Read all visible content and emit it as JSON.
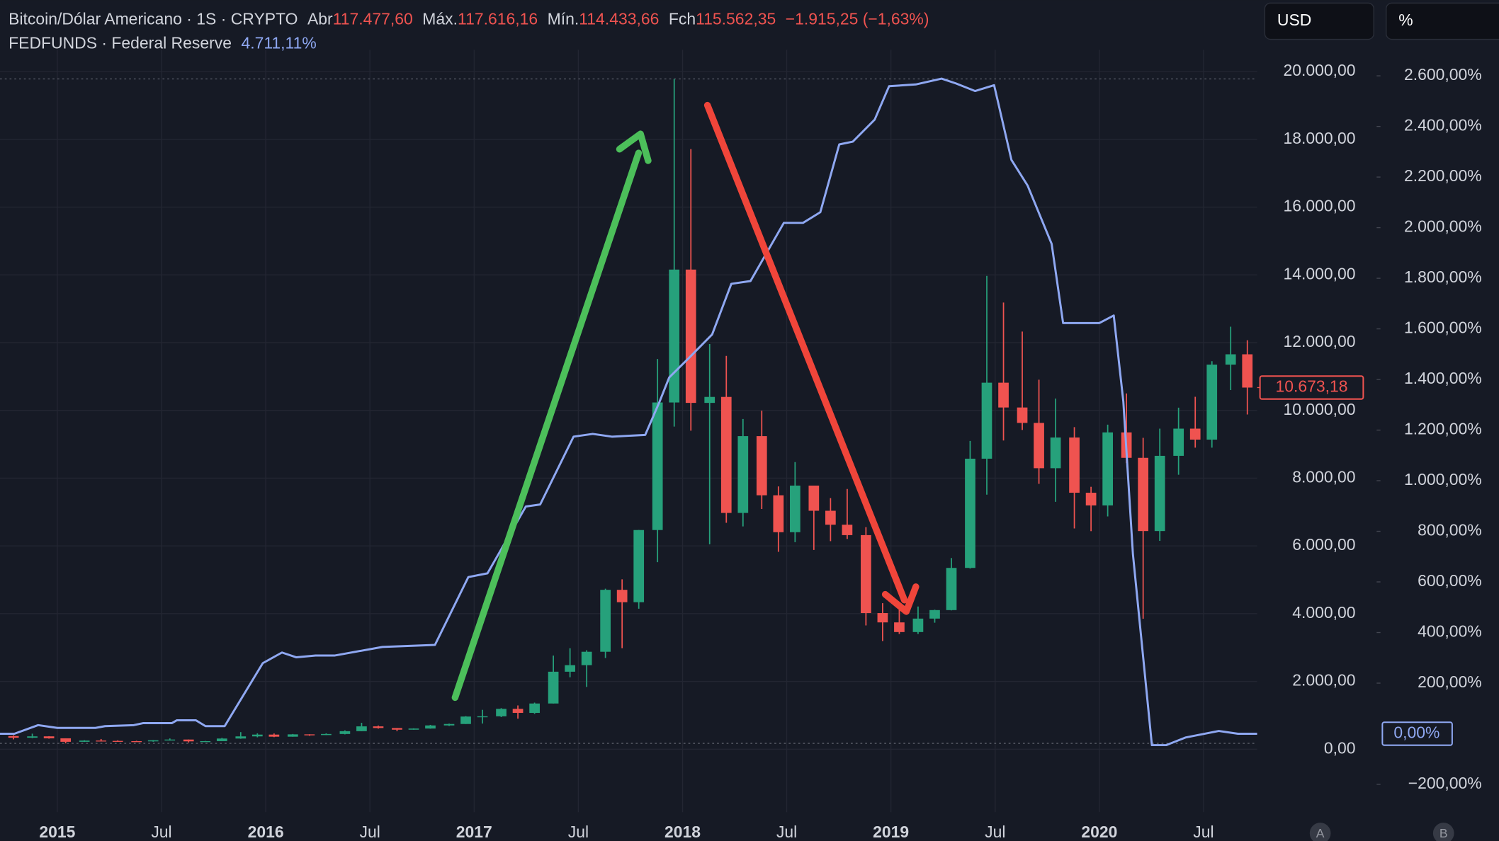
{
  "chart_data": {
    "type": "candlestick",
    "axis_units": [
      "USD",
      "%"
    ],
    "corner_buttons": [
      "A",
      "B"
    ],
    "xlim": [
      2014.725,
      2020.757
    ],
    "xticks": [
      {
        "value": 2015,
        "label": "2015"
      },
      {
        "value": 2015.5,
        "label": "Jul"
      },
      {
        "value": 2016,
        "label": "2016"
      },
      {
        "value": 2016.5,
        "label": "Jul"
      },
      {
        "value": 2017,
        "label": "2017"
      },
      {
        "value": 2017.5,
        "label": "Jul"
      },
      {
        "value": 2018,
        "label": "2018"
      },
      {
        "value": 2018.5,
        "label": "Jul"
      },
      {
        "value": 2019,
        "label": "2019"
      },
      {
        "value": 2019.5,
        "label": "Jul"
      },
      {
        "value": 2020,
        "label": "2020"
      },
      {
        "value": 2020.5,
        "label": "Jul"
      }
    ],
    "ylim": [
      -1860,
      20360
    ],
    "yticks": [
      {
        "value": 0,
        "label": "0,00"
      },
      {
        "value": 2000,
        "label": "2.000,00"
      },
      {
        "value": 4000,
        "label": "4.000,00"
      },
      {
        "value": 6000,
        "label": "6.000,00"
      },
      {
        "value": 8000,
        "label": "8.000,00"
      },
      {
        "value": 10000,
        "label": "10.000,00"
      },
      {
        "value": 12000,
        "label": "12.000,00"
      },
      {
        "value": 14000,
        "label": "14.000,00"
      },
      {
        "value": 16000,
        "label": "16.000,00"
      },
      {
        "value": 18000,
        "label": "18.000,00"
      },
      {
        "value": 20000,
        "label": "20.000,00"
      }
    ],
    "y2lim": [
      -310,
      2665
    ],
    "y2ticks": [
      {
        "value": -200,
        "label": "−200,00%"
      },
      {
        "value": 200,
        "label": "200,00%"
      },
      {
        "value": 400,
        "label": "400,00%"
      },
      {
        "value": 600,
        "label": "600,00%"
      },
      {
        "value": 800,
        "label": "800,00%"
      },
      {
        "value": 1000,
        "label": "1.000,00%"
      },
      {
        "value": 1200,
        "label": "1.200,00%"
      },
      {
        "value": 1400,
        "label": "1.400,00%"
      },
      {
        "value": 1600,
        "label": "1.600,00%"
      },
      {
        "value": 1800,
        "label": "1.800,00%"
      },
      {
        "value": 2000,
        "label": "2.000,00%"
      },
      {
        "value": 2200,
        "label": "2.200,00%"
      },
      {
        "value": 2400,
        "label": "2.400,00%"
      },
      {
        "value": 2600,
        "label": "2.600,00%"
      }
    ],
    "grid": true,
    "series": [
      {
        "name": "Bitcoin/Dólar Americano · 1S · CRYPTO",
        "type": "candlestick",
        "up_color": "#26a17b",
        "down_color": "#ef5350",
        "stats": [
          {
            "label": "Abr",
            "value": "117.477,60"
          },
          {
            "label": "Máx.",
            "value": "117.616,16"
          },
          {
            "label": "Mín.",
            "value": "114.433,66"
          },
          {
            "label": "Fch",
            "value": "115.562,35"
          }
        ],
        "change": "−1.915,25 (−1,63%)",
        "last_label": "10.673,18",
        "x": [
          2014.79,
          2014.88,
          2014.96,
          2015.04,
          2015.13,
          2015.21,
          2015.29,
          2015.38,
          2015.46,
          2015.54,
          2015.63,
          2015.71,
          2015.79,
          2015.88,
          2015.96,
          2016.04,
          2016.13,
          2016.21,
          2016.29,
          2016.38,
          2016.46,
          2016.54,
          2016.63,
          2016.71,
          2016.79,
          2016.88,
          2016.96,
          2017.04,
          2017.13,
          2017.21,
          2017.29,
          2017.38,
          2017.46,
          2017.54,
          2017.63,
          2017.71,
          2017.79,
          2017.88,
          2017.96,
          2018.04,
          2018.13,
          2018.21,
          2018.29,
          2018.38,
          2018.46,
          2018.54,
          2018.63,
          2018.71,
          2018.79,
          2018.88,
          2018.96,
          2019.04,
          2019.13,
          2019.21,
          2019.29,
          2019.38,
          2019.46,
          2019.54,
          2019.63,
          2019.71,
          2019.79,
          2019.88,
          2019.96,
          2020.04,
          2020.13,
          2020.21,
          2020.29,
          2020.38,
          2020.46,
          2020.54,
          2020.63,
          2020.71
        ],
        "open": [
          387,
          338,
          378,
          320,
          217,
          254,
          244,
          236,
          230,
          263,
          284,
          230,
          236,
          314,
          377,
          430,
          368,
          437,
          416,
          448,
          531,
          673,
          624,
          575,
          609,
          701,
          743,
          963,
          970,
          1190,
          1071,
          1348,
          2286,
          2480,
          2875,
          4703,
          4338,
          6468,
          10233,
          14156,
          10221,
          10397,
          6973,
          9240,
          7494,
          6404,
          7780,
          7037,
          6625,
          6318,
          4017,
          3742,
          3457,
          3854,
          4105,
          5350,
          8574,
          10817,
          10085,
          9630,
          8293,
          9199,
          7569,
          7194,
          9350,
          8599,
          6438,
          8658,
          9461,
          9137,
          11351,
          11655
        ],
        "high": [
          411,
          457,
          384,
          320,
          265,
          300,
          261,
          248,
          268,
          317,
          285,
          243,
          334,
          503,
          466,
          463,
          448,
          440,
          467,
          555,
          778,
          698,
          626,
          615,
          717,
          755,
          975,
          1161,
          1211,
          1291,
          1374,
          2763,
          2980,
          2920,
          4736,
          5014,
          6470,
          11517,
          19783,
          17712,
          11958,
          11608,
          9745,
          9990,
          7754,
          8474,
          7760,
          7410,
          7680,
          6555,
          4309,
          4109,
          4211,
          4117,
          5642,
          9097,
          13970,
          13183,
          12326,
          10905,
          10350,
          9505,
          7744,
          9578,
          10500,
          9189,
          9460,
          10080,
          10400,
          11450,
          12470,
          12070
        ],
        "low": [
          289,
          325,
          310,
          171,
          212,
          235,
          214,
          226,
          219,
          253,
          198,
          224,
          235,
          306,
          350,
          355,
          366,
          394,
          416,
          437,
          531,
          606,
          532,
          574,
          604,
          684,
          743,
          756,
          947,
          900,
          1043,
          1348,
          2123,
          1837,
          2691,
          2981,
          4146,
          5519,
          9522,
          9402,
          6048,
          6683,
          6574,
          7090,
          5826,
          6111,
          5880,
          6140,
          6205,
          3652,
          3191,
          3400,
          3400,
          3733,
          4096,
          5332,
          7512,
          9111,
          9421,
          7830,
          7300,
          6515,
          6435,
          6871,
          8445,
          3850,
          6150,
          8100,
          8900,
          8900,
          10600,
          9880
        ],
        "close": [
          338,
          378,
          320,
          217,
          254,
          244,
          236,
          230,
          263,
          284,
          230,
          236,
          314,
          377,
          430,
          368,
          437,
          416,
          448,
          531,
          673,
          624,
          575,
          609,
          701,
          743,
          963,
          970,
          1190,
          1071,
          1348,
          2286,
          2480,
          2875,
          4703,
          4338,
          6468,
          10233,
          14156,
          10221,
          10397,
          6973,
          9240,
          7494,
          6404,
          7780,
          7037,
          6625,
          6318,
          4017,
          3742,
          3457,
          3854,
          4105,
          5350,
          8574,
          10817,
          10085,
          9630,
          8293,
          9199,
          7569,
          7194,
          9350,
          8599,
          6438,
          8658,
          9461,
          9137,
          11351,
          11655,
          10673.18
        ]
      },
      {
        "name": "FEDFUNDS · Federal Reserve",
        "type": "line",
        "axis": "y2",
        "color": "#8fa8f2",
        "stats_value": "4.711,11%",
        "last_label": "0,00%",
        "x": [
          2014.725,
          2014.794,
          2014.908,
          2015.0,
          2015.183,
          2015.229,
          2015.367,
          2015.413,
          2015.55,
          2015.573,
          2015.665,
          2015.711,
          2015.803,
          2015.986,
          2016.078,
          2016.147,
          2016.239,
          2016.33,
          2016.56,
          2016.812,
          2016.972,
          2017.064,
          2017.248,
          2017.317,
          2017.477,
          2017.569,
          2017.661,
          2017.821,
          2017.89,
          2017.936,
          2018.028,
          2018.142,
          2018.234,
          2018.326,
          2018.486,
          2018.578,
          2018.661,
          2018.752,
          2018.817,
          2018.922,
          2018.991,
          2019.119,
          2019.243,
          2019.312,
          2019.404,
          2019.495,
          2019.578,
          2019.656,
          2019.771,
          2019.826,
          2020.0,
          2020.069,
          2020.115,
          2020.161,
          2020.252,
          2020.321,
          2020.413,
          2020.573,
          2020.665,
          2020.757
        ],
        "values": [
          0,
          0,
          34,
          23,
          23,
          30,
          34,
          42,
          42,
          53,
          53,
          30,
          30,
          279,
          321,
          302,
          309,
          309,
          343,
          351,
          619,
          634,
          898,
          906,
          1174,
          1185,
          1174,
          1181,
          1313,
          1408,
          1483,
          1578,
          1778,
          1789,
          2019,
          2019,
          2061,
          2329,
          2340,
          2427,
          2559,
          2566,
          2589,
          2570,
          2540,
          2563,
          2268,
          2166,
          1936,
          1623,
          1623,
          1653,
          1313,
          710,
          -45,
          -45,
          -15,
          11,
          0,
          0
        ]
      }
    ]
  }
}
